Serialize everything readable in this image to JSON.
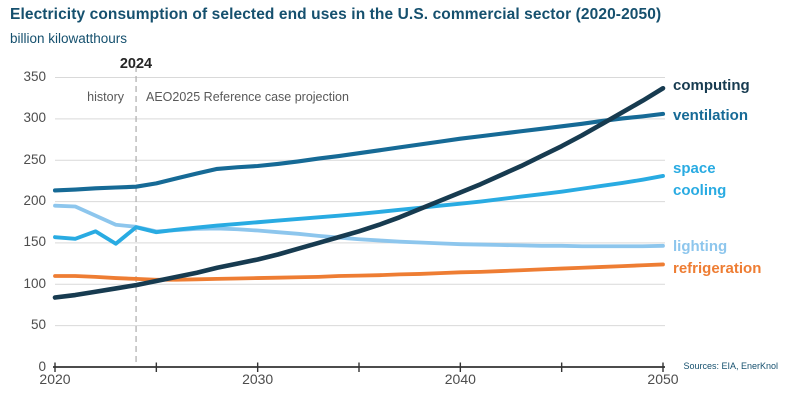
{
  "title": "Electricity consumption of selected end uses in the U.S. commercial sector (2020-2050)",
  "subtitle": "billion kilowatthours",
  "source_note": "Sources: EIA, EnerKnol",
  "annotations": {
    "divider_year_label": "2024",
    "left_region_label": "history",
    "right_region_label": "AEO2025 Reference case projection"
  },
  "colors": {
    "heading": "#15506e",
    "axis_line": "#333333",
    "tick_text": "#4d4d4d",
    "gridline": "#d9d9d9",
    "divider_dash": "#b3b3b3",
    "computing": "#173b50",
    "ventilation": "#166a96",
    "space_cooling": "#29abe2",
    "lighting": "#8dc6ed",
    "refrigeration": "#ee7d33"
  },
  "chart_data": {
    "type": "line",
    "title": "Electricity consumption of selected end uses in the U.S. commercial sector (2020-2050)",
    "ylabel": "billion kilowatthours",
    "xlabel": "",
    "ylim": [
      0,
      350
    ],
    "yticks": [
      0,
      50,
      100,
      150,
      200,
      250,
      300,
      350
    ],
    "xlim": [
      2020,
      2050
    ],
    "xticks_minor": [
      2020,
      2025,
      2030,
      2035,
      2040,
      2045,
      2050
    ],
    "xticks_labeled": [
      2020,
      2030,
      2040,
      2050
    ],
    "grid": "horizontal",
    "divider_year": 2024,
    "legend_position": "right-of-lines",
    "x": [
      2020,
      2021,
      2022,
      2023,
      2024,
      2025,
      2026,
      2027,
      2028,
      2029,
      2030,
      2031,
      2032,
      2033,
      2034,
      2035,
      2036,
      2037,
      2038,
      2039,
      2040,
      2041,
      2042,
      2043,
      2044,
      2045,
      2046,
      2047,
      2048,
      2049,
      2050
    ],
    "series": [
      {
        "name": "lighting",
        "label": "lighting",
        "color": "#8dc6ed",
        "stroke_width": 3.8,
        "values": [
          195,
          194,
          183,
          172,
          169.5,
          164,
          165.5,
          167,
          167.5,
          166.5,
          165,
          163,
          161,
          158.5,
          156.5,
          154.5,
          153,
          151.5,
          150.5,
          149.5,
          148.5,
          148,
          147.5,
          147,
          146.5,
          146.5,
          146,
          146,
          146,
          146,
          146.5
        ]
      },
      {
        "name": "refrigeration",
        "label": "refrigeration",
        "color": "#ee7d33",
        "stroke_width": 3.8,
        "values": [
          110,
          110,
          109,
          107.5,
          106.5,
          105.5,
          105.5,
          106,
          106.5,
          107,
          107.5,
          108,
          108.5,
          109,
          110,
          110.5,
          111,
          112,
          112.5,
          113.5,
          114.5,
          115,
          116,
          117,
          118,
          119,
          120,
          121,
          122,
          123,
          124
        ]
      },
      {
        "name": "space_cooling",
        "label": "space cooling",
        "color": "#29abe2",
        "stroke_width": 3.9,
        "values": [
          157,
          155,
          164,
          149,
          169,
          163,
          166,
          168.5,
          171,
          173,
          175,
          177,
          179,
          181,
          183,
          185,
          187.5,
          190,
          192.5,
          195,
          197.5,
          200,
          203,
          206,
          209,
          212,
          215.5,
          219,
          222.5,
          226.5,
          231
        ]
      },
      {
        "name": "ventilation",
        "label": "ventilation",
        "color": "#166a96",
        "stroke_width": 4.1,
        "values": [
          213.5,
          214.5,
          216,
          217,
          218,
          222,
          228,
          234,
          239.5,
          241.5,
          243,
          245.5,
          248.5,
          252,
          255,
          258.5,
          262,
          265.5,
          269,
          272.5,
          276,
          279,
          282,
          285,
          288,
          291,
          294,
          297.5,
          300.5,
          303,
          306
        ]
      },
      {
        "name": "computing",
        "label": "computing",
        "color": "#173b50",
        "stroke_width": 4.6,
        "values": [
          84,
          87,
          91,
          95,
          99,
          104,
          109,
          114,
          120,
          125,
          130,
          136,
          143,
          150,
          157,
          164,
          172,
          181,
          191,
          201,
          211,
          221,
          232,
          243,
          255,
          267,
          280,
          294,
          308,
          322,
          337
        ]
      }
    ]
  }
}
